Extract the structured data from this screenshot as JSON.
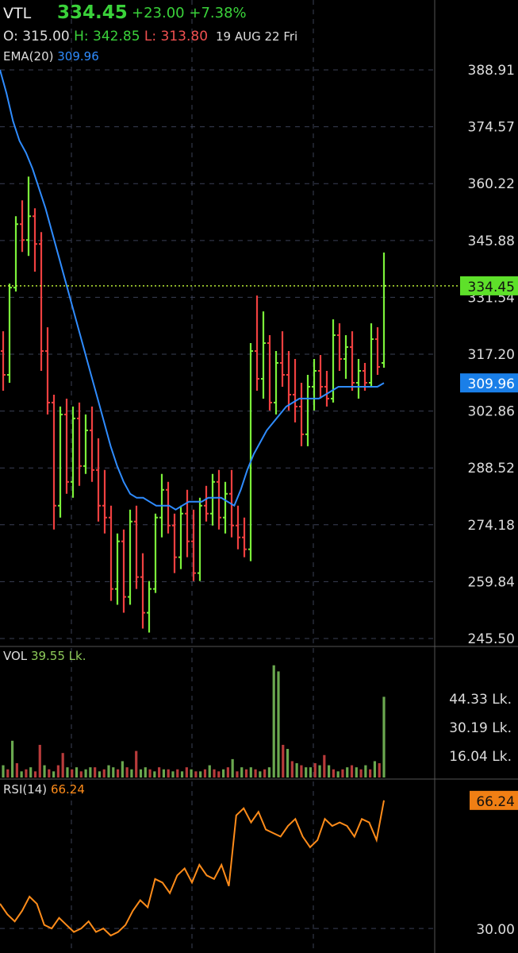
{
  "header": {
    "symbol": "VTL",
    "last_price": "334.45",
    "change": "+23.00",
    "change_pct": "+7.38%",
    "open_label": "O:",
    "open": "315.00",
    "high_label": "H:",
    "high": "342.85",
    "low_label": "L:",
    "low": "313.80",
    "date": "19 AUG 22 Fri"
  },
  "indicators": {
    "ema_label": "EMA(20)",
    "ema_value": "309.96",
    "vol_label": "VOL",
    "vol_value": "39.55 Lk.",
    "rsi_label": "RSI(14)",
    "rsi_value": "66.24"
  },
  "colors": {
    "up": "#7cf23a",
    "down": "#f04040",
    "ema": "#2f8cff",
    "rsi": "#ff8c1a",
    "vol_up": "#6aa84f",
    "vol_down": "#b83b3b",
    "last_line": "#c9ff3a",
    "grid": "#3a3f55"
  },
  "chart_data": [
    {
      "type": "ohlc",
      "price_axis": {
        "ticks": [
          "388.91",
          "374.57",
          "360.22",
          "345.88",
          "331.54",
          "317.20",
          "302.86",
          "288.52",
          "274.18",
          "259.84",
          "245.50"
        ],
        "ylim": [
          245.5,
          388.91
        ]
      },
      "last_price_tag": "334.45",
      "ema_tag": "309.96",
      "bars": [
        [
          318,
          323,
          308,
          312
        ],
        [
          312,
          335,
          310,
          334
        ],
        [
          334,
          352,
          333,
          350
        ],
        [
          350,
          356,
          343,
          346
        ],
        [
          346,
          362,
          342,
          352
        ],
        [
          352,
          354,
          338,
          345
        ],
        [
          345,
          348,
          313,
          318
        ],
        [
          318,
          324,
          302,
          305
        ],
        [
          305,
          307,
          273,
          279
        ],
        [
          279,
          304,
          276,
          302
        ],
        [
          302,
          306,
          282,
          285
        ],
        [
          285,
          304,
          281,
          301
        ],
        [
          301,
          305,
          284,
          289
        ],
        [
          289,
          302,
          287,
          298
        ],
        [
          298,
          304,
          285,
          288
        ],
        [
          288,
          296,
          275,
          279
        ],
        [
          279,
          288,
          272,
          276
        ],
        [
          276,
          279,
          255,
          258
        ],
        [
          258,
          272,
          254,
          270
        ],
        [
          270,
          273,
          252,
          256
        ],
        [
          256,
          278,
          254,
          275
        ],
        [
          275,
          279,
          258,
          261
        ],
        [
          261,
          267,
          248,
          252
        ],
        [
          252,
          260,
          247,
          258
        ],
        [
          258,
          277,
          257,
          276
        ],
        [
          276,
          287,
          271,
          283
        ],
        [
          283,
          285,
          272,
          274
        ],
        [
          274,
          277,
          262,
          266
        ],
        [
          266,
          279,
          263,
          277
        ],
        [
          277,
          283,
          266,
          270
        ],
        [
          270,
          278,
          260,
          262
        ],
        [
          262,
          281,
          260,
          279
        ],
        [
          279,
          284,
          275,
          277
        ],
        [
          277,
          287,
          274,
          285
        ],
        [
          285,
          288,
          273,
          276
        ],
        [
          276,
          285,
          272,
          282
        ],
        [
          282,
          288,
          271,
          274
        ],
        [
          274,
          279,
          268,
          271
        ],
        [
          271,
          276,
          266,
          268
        ],
        [
          268,
          320,
          265,
          318
        ],
        [
          318,
          332,
          308,
          311
        ],
        [
          311,
          328,
          306,
          320
        ],
        [
          320,
          322,
          303,
          305
        ],
        [
          305,
          318,
          302,
          315
        ],
        [
          315,
          323,
          309,
          312
        ],
        [
          312,
          318,
          303,
          307
        ],
        [
          307,
          316,
          300,
          304
        ],
        [
          304,
          310,
          294,
          297
        ],
        [
          297,
          312,
          294,
          309
        ],
        [
          309,
          316,
          303,
          313
        ],
        [
          313,
          317,
          306,
          309
        ],
        [
          309,
          313,
          304,
          306
        ],
        [
          306,
          326,
          305,
          322
        ],
        [
          322,
          325,
          313,
          316
        ],
        [
          316,
          322,
          311,
          319
        ],
        [
          319,
          323,
          308,
          310
        ],
        [
          310,
          316,
          306,
          313
        ],
        [
          313,
          315,
          308,
          310
        ],
        [
          310,
          325,
          309,
          321
        ],
        [
          321,
          324,
          312,
          314
        ],
        [
          315,
          342.85,
          313.8,
          334.45
        ]
      ],
      "ema": [
        388.9,
        383,
        376,
        371,
        368,
        364,
        359,
        354,
        348,
        342,
        336,
        330,
        324,
        318,
        312,
        306,
        300,
        294,
        289,
        285,
        282,
        281,
        281,
        280,
        279,
        279,
        279,
        278,
        279,
        280,
        280,
        280,
        281,
        281,
        281,
        280,
        279,
        283,
        288,
        292,
        295,
        298,
        300,
        302,
        304,
        305,
        306,
        306,
        306,
        306,
        307,
        308,
        309,
        309,
        309,
        309,
        309,
        309,
        309,
        309.96
      ]
    },
    {
      "type": "bar",
      "name": "VOL",
      "value_label": "39.55 Lk.",
      "axis_ticks": [
        "44.33 Lk.",
        "30.19 Lk.",
        "16.04 Lk."
      ],
      "ylim": [
        0,
        58
      ],
      "values": [
        6,
        4,
        18,
        7,
        3,
        4,
        5,
        3,
        16,
        6,
        4,
        3,
        6,
        12,
        5,
        4,
        5,
        3,
        4,
        5,
        5,
        3,
        4,
        6,
        5,
        4,
        8,
        5,
        4,
        13,
        4,
        5,
        4,
        3,
        5,
        4,
        4,
        3,
        4,
        3,
        5,
        4,
        3,
        3,
        4,
        6,
        4,
        3,
        4,
        5,
        9,
        3,
        5,
        4,
        5,
        4,
        3,
        4,
        5,
        55,
        52,
        16,
        14,
        8,
        7,
        6,
        5,
        5,
        7,
        6,
        11,
        6,
        4,
        3,
        4,
        5,
        6,
        5,
        4,
        6,
        4,
        8,
        7,
        39.55
      ],
      "up": [
        true,
        false,
        true,
        false,
        true,
        false,
        true,
        false,
        false,
        true,
        false,
        true,
        false,
        false,
        true,
        false,
        true,
        false,
        true,
        true,
        false,
        true,
        false,
        true,
        true,
        false,
        true,
        false,
        true,
        false,
        true,
        true,
        false,
        true,
        false,
        true,
        false,
        true,
        false,
        true,
        false,
        true,
        false,
        true,
        false,
        true,
        false,
        false,
        true,
        false,
        true,
        false,
        true,
        false,
        true,
        false,
        true,
        false,
        true,
        true,
        true,
        false,
        true,
        false,
        true,
        false,
        true,
        true,
        false,
        true,
        false,
        true,
        false,
        true,
        false,
        true,
        false,
        true,
        false,
        true,
        false,
        true,
        false,
        true
      ]
    },
    {
      "type": "line",
      "name": "RSI(14)",
      "value_label": "66.24",
      "axis_ticks": [
        "66.24",
        "30.00"
      ],
      "ylim": [
        28,
        68
      ],
      "values": [
        37,
        34,
        32,
        35,
        39,
        37,
        31,
        30,
        33,
        31,
        29,
        30,
        32,
        29,
        30,
        28,
        29,
        31,
        35,
        38,
        36,
        44,
        43,
        40,
        45,
        47,
        43,
        48,
        45,
        44,
        48,
        42,
        62,
        64,
        60,
        63,
        58,
        57,
        56,
        59,
        61,
        56,
        53,
        55,
        61,
        59,
        60,
        59,
        56,
        61,
        60,
        55,
        66.24
      ]
    }
  ]
}
